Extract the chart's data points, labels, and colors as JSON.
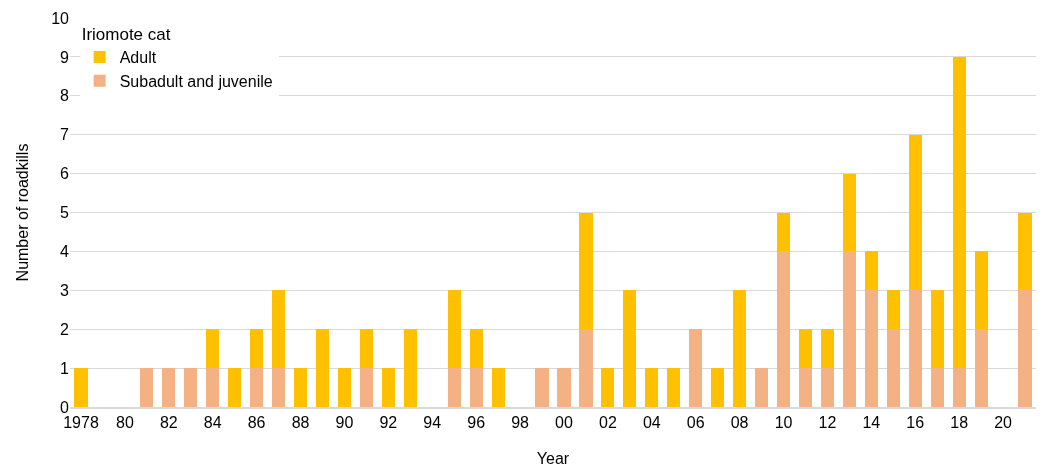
{
  "chart_data": {
    "type": "bar",
    "stacked": true,
    "xlabel": "Year",
    "ylabel": "Number of roadkills",
    "legend_title": "Iriomote cat",
    "legend": "top left",
    "grid": "y",
    "categories": [
      "1978",
      null,
      "80",
      null,
      "82",
      null,
      "84",
      null,
      "86",
      null,
      "88",
      null,
      "90",
      null,
      "92",
      null,
      "94",
      null,
      "96",
      null,
      "98",
      null,
      "00",
      null,
      "02",
      null,
      "04",
      null,
      "06",
      null,
      "08",
      null,
      "10",
      null,
      "12",
      null,
      "14",
      null,
      "16",
      null,
      "18",
      null,
      "20",
      null
    ],
    "ylim": [
      0,
      10
    ],
    "yticks": [
      0,
      1,
      2,
      3,
      4,
      5,
      6,
      7,
      8,
      9,
      10
    ],
    "series": [
      {
        "name": "Subadult and juvenile",
        "color": "#f4b183",
        "values": [
          0,
          0,
          0,
          1,
          1,
          1,
          1,
          0,
          1,
          1,
          0,
          0,
          0,
          1,
          0,
          0,
          0,
          1,
          1,
          0,
          0,
          1,
          1,
          2,
          0,
          0,
          0,
          0,
          2,
          0,
          0,
          1,
          4,
          1,
          1,
          4,
          3,
          2,
          3,
          1,
          1,
          2,
          0,
          3
        ]
      },
      {
        "name": "Adult",
        "color": "#ffc000",
        "values": [
          1,
          0,
          0,
          0,
          0,
          0,
          1,
          1,
          1,
          2,
          1,
          2,
          1,
          1,
          1,
          2,
          0,
          2,
          1,
          1,
          0,
          0,
          0,
          3,
          1,
          3,
          1,
          1,
          0,
          1,
          3,
          0,
          1,
          1,
          1,
          2,
          1,
          1,
          4,
          2,
          8,
          2,
          0,
          2
        ]
      }
    ]
  }
}
